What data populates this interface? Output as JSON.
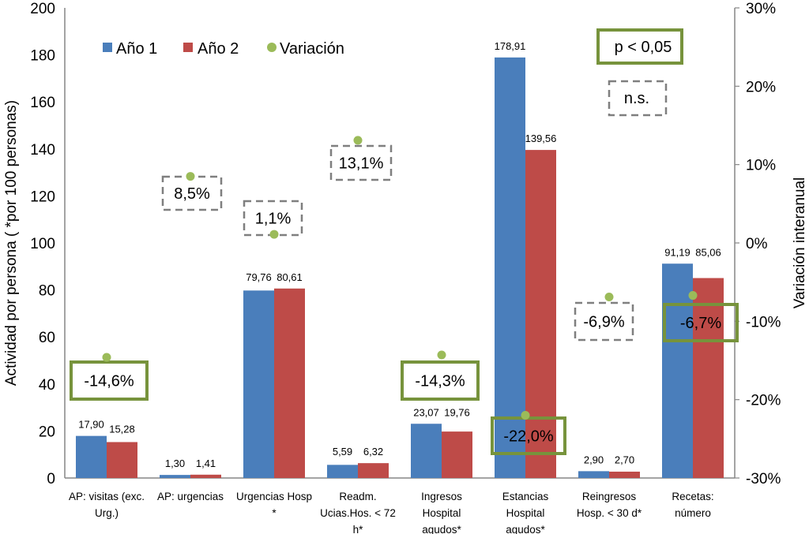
{
  "chart_data": {
    "type": "bar",
    "title": "",
    "ylabel": "Actividad por persona ( *por 100 personas)",
    "y2label": "Variación interanual",
    "xlabel": "",
    "ylim": [
      0,
      200
    ],
    "yticks": [
      "0",
      "20",
      "40",
      "60",
      "80",
      "100",
      "120",
      "140",
      "160",
      "180",
      "200"
    ],
    "y2lim": [
      -30,
      30
    ],
    "y2ticks": [
      "-30%",
      "-20%",
      "-10%",
      "0%",
      "10%",
      "20%",
      "30%"
    ],
    "grid": false,
    "legend_position": "top-left",
    "categories": [
      [
        "AP: visitas (exc.",
        "Urg.)"
      ],
      [
        "AP: urgencias"
      ],
      [
        "Urgencias Hosp",
        "*"
      ],
      [
        "Readm.",
        "Ucias.Hos. < 72",
        "h*"
      ],
      [
        "Ingresos",
        "Hospital",
        "agudos*"
      ],
      [
        "Estancias",
        "Hospital",
        "agudos*"
      ],
      [
        "Reingresos",
        "Hosp. < 30 d*"
      ],
      [
        "Recetas:",
        "número"
      ]
    ],
    "series": [
      {
        "name": "Año 1",
        "color": "#4a7ebb",
        "values": [
          17.9,
          1.3,
          79.76,
          5.59,
          23.07,
          178.91,
          2.9,
          91.19
        ],
        "labels": [
          "17,90",
          "1,30",
          "79,76",
          "5,59",
          "23,07",
          "178,91",
          "2,90",
          "91,19"
        ]
      },
      {
        "name": "Año 2",
        "color": "#be4b48",
        "values": [
          15.28,
          1.41,
          80.61,
          6.32,
          19.76,
          139.56,
          2.7,
          85.06
        ],
        "labels": [
          "15,28",
          "1,41",
          "80,61",
          "6,32",
          "19,76",
          "139,56",
          "2,70",
          "85,06"
        ]
      },
      {
        "name": "Variación",
        "type": "scatter",
        "axis": "right",
        "color": "#9bbb59",
        "values": [
          -14.6,
          8.5,
          1.1,
          13.1,
          -14.3,
          -22.0,
          -6.9,
          -6.7
        ],
        "labels": [
          "-14,6%",
          "8,5%",
          "1,1%",
          "13,1%",
          "-14,3%",
          "-22,0%",
          "-6,9%",
          "-6,7%"
        ],
        "significance": [
          "p<0.05",
          "n.s.",
          "n.s.",
          "n.s.",
          "p<0.05",
          "p<0.05",
          "n.s.",
          "p<0.05"
        ]
      }
    ],
    "annotations": [
      {
        "text": "p < 0,05",
        "style": "solid-green",
        "meaning": "significant"
      },
      {
        "text": "n.s.",
        "style": "dashed-gray",
        "meaning": "not significant"
      }
    ]
  },
  "colors": {
    "year1": "#4a7ebb",
    "year2": "#be4b48",
    "variation": "#9bbb59",
    "significant_box": "#77933c",
    "ns_box": "#7f7f7f",
    "axis": "#868686"
  }
}
